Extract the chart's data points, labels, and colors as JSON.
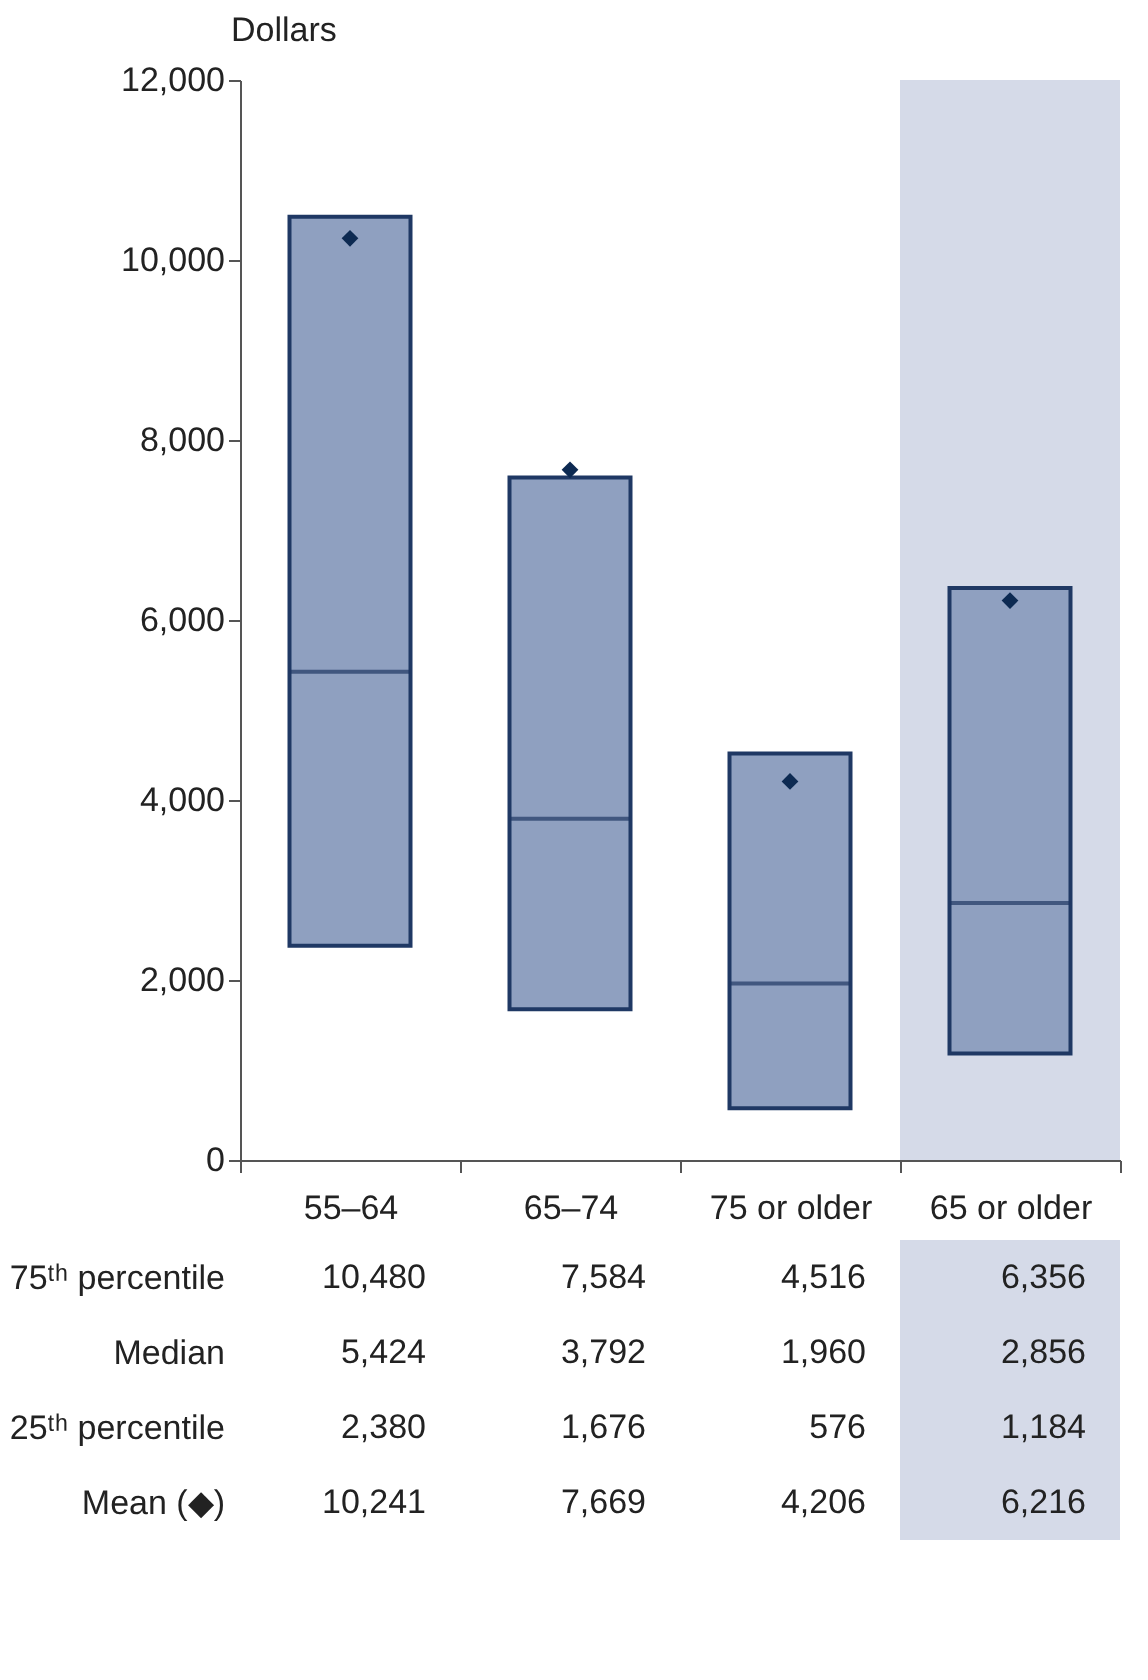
{
  "chart_data": {
    "type": "box",
    "ylabel": "Dollars",
    "categories": [
      "55–64",
      "65–74",
      "75 or older",
      "65 or older"
    ],
    "boxes": [
      {
        "low": 2380,
        "q1": 2380,
        "median": 5424,
        "q3": 10480,
        "high": 10480,
        "mean": 10241
      },
      {
        "low": 1676,
        "q1": 1676,
        "median": 3792,
        "q3": 7584,
        "high": 7584,
        "mean": 7669
      },
      {
        "low": 576,
        "q1": 576,
        "median": 1960,
        "q3": 4516,
        "high": 4516,
        "mean": 4206
      },
      {
        "low": 1184,
        "q1": 1184,
        "median": 2856,
        "q3": 6356,
        "high": 6356,
        "mean": 6216
      }
    ],
    "color": "#8fa0c0",
    "marker": "diamond",
    "ylim": [
      0,
      12000
    ],
    "yticks": [
      0,
      {
        "value": 2000,
        "label": "2,000"
      },
      {
        "value": 4000,
        "label": "4,000"
      },
      {
        "value": 6000,
        "label": "6,000"
      },
      {
        "value": 8000,
        "label": "8,000"
      },
      {
        "value": 10000,
        "label": "10,000"
      },
      {
        "value": 12000,
        "label": "12,000"
      }
    ],
    "bands": [
      {
        "axis": "x",
        "from": "65 or older",
        "to": "65 or older",
        "color": "#d5dae8"
      }
    ],
    "annotations": [
      "75ᵗʰ percentile",
      "Median",
      "25ᵗʰ percentile",
      "Mean (◆)",
      "10,480",
      "7,584",
      "4,516",
      "6,356",
      "5,424",
      "3,792",
      "1,960",
      "2,856",
      "2,380",
      "1,676",
      "576",
      "1,184",
      "10,241",
      "7,669",
      "4,206",
      "6,216"
    ],
    "grid": false
  }
}
